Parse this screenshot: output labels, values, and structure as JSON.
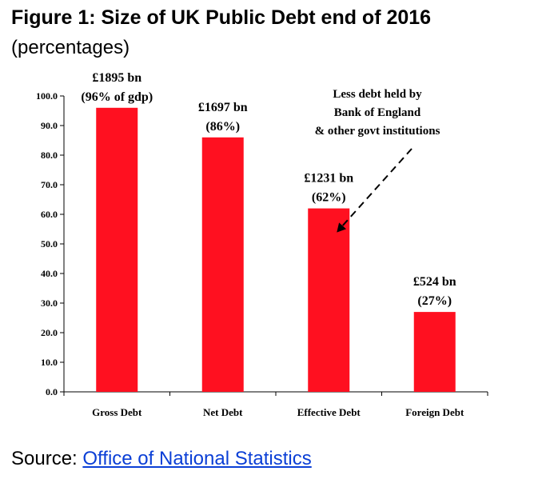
{
  "title": "Figure 1: Size of UK Public Debt end of 2016",
  "subtitle": "(percentages)",
  "source": {
    "label": "Source: ",
    "link_text": "Office of National Statistics"
  },
  "chart_data": {
    "type": "bar",
    "categories": [
      "Gross Debt",
      "Net Debt",
      "Effective Debt",
      "Foreign Debt"
    ],
    "values": [
      96,
      86,
      62,
      27
    ],
    "data_labels": [
      [
        "£1895 bn",
        "(96% of gdp)"
      ],
      [
        "£1697 bn",
        "(86%)"
      ],
      [
        "£1231 bn",
        "(62%)"
      ],
      [
        "£524 bn",
        "(27%)"
      ]
    ],
    "ylim": [
      0,
      100
    ],
    "yticks": [
      "0.0",
      "10.0",
      "20.0",
      "30.0",
      "40.0",
      "50.0",
      "60.0",
      "70.0",
      "80.0",
      "90.0",
      "100.0"
    ],
    "annotation": {
      "lines": [
        "Less debt held by",
        "Bank of England",
        "& other govt institutions"
      ],
      "points_to": "Effective Debt"
    },
    "bar_color": "#ff1020",
    "grid": false,
    "legend": "none"
  }
}
